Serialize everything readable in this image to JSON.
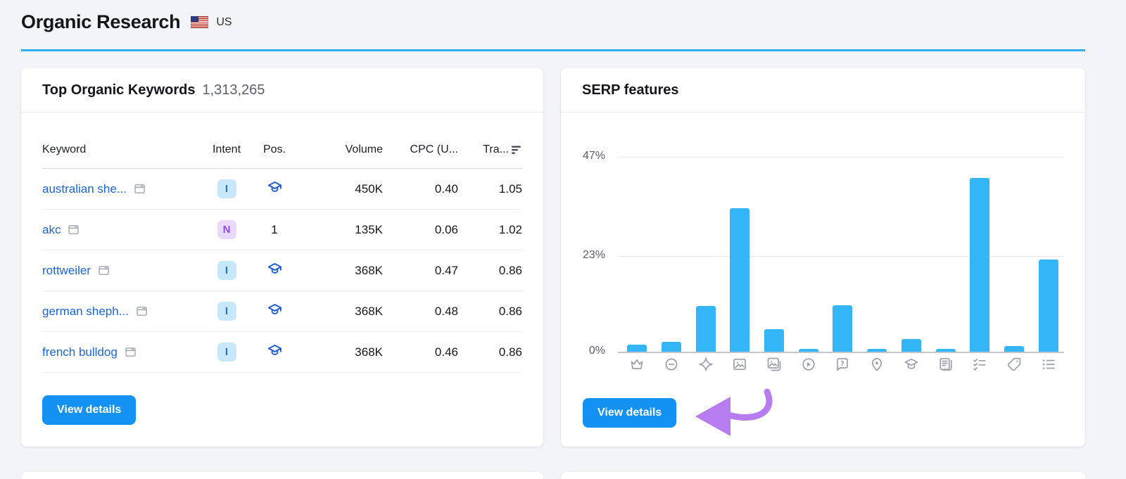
{
  "page": {
    "title": "Organic Research",
    "country": "US"
  },
  "keywords_card": {
    "title": "Top Organic Keywords",
    "count": "1,313,265",
    "columns": [
      "Keyword",
      "Intent",
      "Pos.",
      "Volume",
      "CPC (U...",
      "Tra..."
    ],
    "rows": [
      {
        "keyword": "australian she...",
        "intent": "I",
        "position": "",
        "position_icon": true,
        "volume": "450K",
        "cpc": "0.40",
        "traffic": "1.05"
      },
      {
        "keyword": "akc",
        "intent": "N",
        "position": "1",
        "position_icon": false,
        "volume": "135K",
        "cpc": "0.06",
        "traffic": "1.02"
      },
      {
        "keyword": "rottweiler",
        "intent": "I",
        "position": "",
        "position_icon": true,
        "volume": "368K",
        "cpc": "0.47",
        "traffic": "0.86"
      },
      {
        "keyword": "german sheph...",
        "intent": "I",
        "position": "",
        "position_icon": true,
        "volume": "368K",
        "cpc": "0.48",
        "traffic": "0.86"
      },
      {
        "keyword": "french bulldog",
        "intent": "I",
        "position": "",
        "position_icon": true,
        "volume": "368K",
        "cpc": "0.46",
        "traffic": "0.86"
      }
    ],
    "view_details_label": "View details"
  },
  "serp_card": {
    "title": "SERP features",
    "view_details_label": "View details"
  },
  "chart_data": {
    "type": "bar",
    "title": "SERP features",
    "categories": [
      "featured-snippet",
      "sitelinks",
      "ai-overview",
      "image-pack",
      "featured-image",
      "video",
      "people-also-ask",
      "local-pack",
      "knowledge-panel",
      "top-stories",
      "faq",
      "product-tag",
      "related-searches"
    ],
    "values": [
      1.7,
      2.4,
      11,
      34.7,
      5.4,
      0.7,
      11.2,
      0.7,
      3.1,
      0.7,
      42,
      1.4,
      22.3
    ],
    "ylim": [
      0,
      47
    ],
    "yticks": [
      {
        "value": 47,
        "label": "47%"
      },
      {
        "value": 23,
        "label": "23%"
      },
      {
        "value": 0,
        "label": "0%"
      }
    ],
    "grid": true,
    "legend": "none",
    "bar_color": "#33b5f7"
  },
  "colors": {
    "accent_blue": "#2fb0f3",
    "bar_blue": "#33b5f7",
    "button_blue": "#1492f4",
    "link_blue": "#1b64dc",
    "intent_informational_bg": "#c7e7fb",
    "intent_informational_text": "#2b70c2",
    "intent_navigational_bg": "#ead9fc",
    "intent_navigational_text": "#8a4ae3",
    "annotation_purple": "#b67cf0"
  }
}
